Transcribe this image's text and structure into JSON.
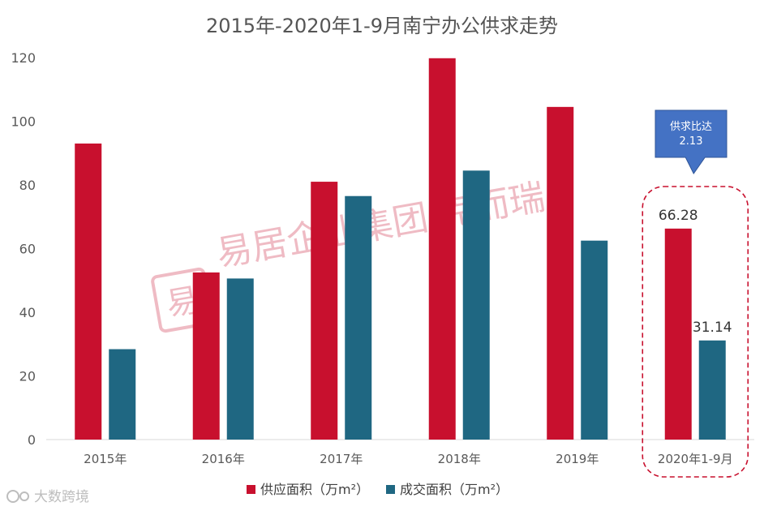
{
  "chart_data": {
    "type": "bar",
    "title": "2015年-2020年1-9月南宁办公供求走势",
    "categories": [
      "2015年",
      "2016年",
      "2017年",
      "2018年",
      "2019年",
      "2020年1-9月"
    ],
    "series": [
      {
        "name": "供应面积（万m²）",
        "color": "#c8102e",
        "values": [
          93.0,
          52.5,
          81.0,
          119.8,
          104.5,
          66.28
        ]
      },
      {
        "name": "成交面积（万m²）",
        "color": "#1f6782",
        "values": [
          28.4,
          50.6,
          76.5,
          84.5,
          62.5,
          31.14
        ]
      }
    ],
    "data_labels": [
      {
        "series": 0,
        "index": 5,
        "text": "66.28"
      },
      {
        "series": 1,
        "index": 5,
        "text": "31.14"
      }
    ],
    "ylim": [
      0,
      120
    ],
    "yticks": [
      0,
      20,
      40,
      60,
      80,
      100,
      120
    ],
    "xlabel": "",
    "ylabel": "",
    "grid": false,
    "legend_position": "bottom",
    "callout": {
      "line1": "供求比达",
      "line2": "2.13",
      "color": "#4472c4"
    },
    "highlight_category_index": 5,
    "highlight_color": "#c8102e"
  },
  "watermark": {
    "text": "易居企业集团·克而瑞",
    "seal": "易"
  },
  "footer_logo": {
    "text": "大数跨境"
  }
}
